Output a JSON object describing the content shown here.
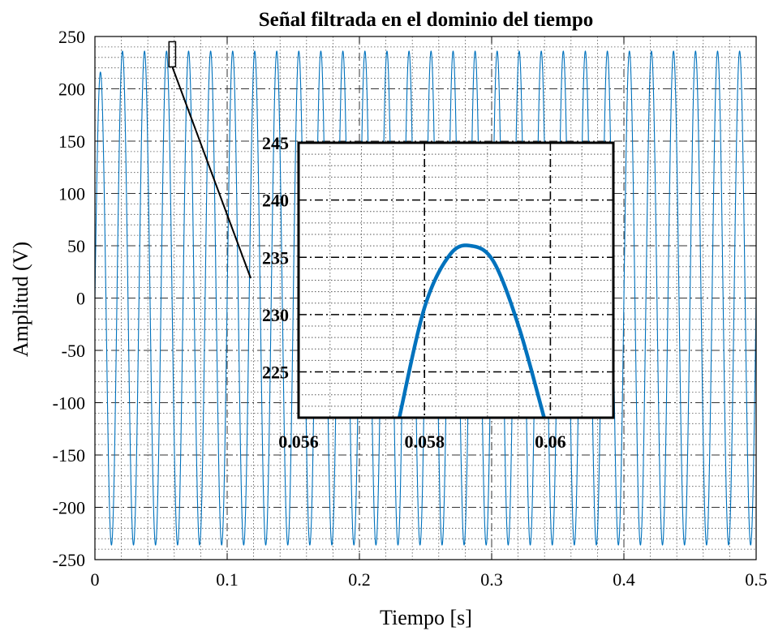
{
  "chart_data": {
    "type": "line",
    "title": "Señal filtrada en el dominio del tiempo",
    "xlabel": "Tiempo [s]",
    "ylabel": "Amplitud (V)",
    "xlim": [
      0,
      0.5
    ],
    "ylim": [
      -250,
      250
    ],
    "x_ticks": [
      "0",
      "0.1",
      "0.2",
      "0.3",
      "0.4",
      "0.5"
    ],
    "y_ticks": [
      "250",
      "200",
      "150",
      "100",
      "50",
      "0",
      "-50",
      "-100",
      "-150",
      "-200",
      "-250"
    ],
    "grid": true,
    "minor_grid": true,
    "series": [
      {
        "color": "#0072BD",
        "signal": {
          "frequency_hz": 60,
          "peak_amplitude_v": 236,
          "first_peak_v": 216,
          "start_v": 0
        }
      }
    ],
    "inset": {
      "xlim": [
        0.056,
        0.061
      ],
      "ylim": [
        221,
        245
      ],
      "x_ticks": [
        "0.056",
        "0.058",
        "0.06"
      ],
      "y_ticks": [
        "245",
        "240",
        "235",
        "230",
        "225"
      ],
      "curve": {
        "x": [
          0.0576,
          0.058,
          0.0584,
          0.05874,
          0.0591,
          0.0595,
          0.0599
        ],
        "y": [
          221.0,
          230.6,
          235.2,
          236.0,
          234.6,
          228.9,
          221.0
        ]
      }
    }
  }
}
